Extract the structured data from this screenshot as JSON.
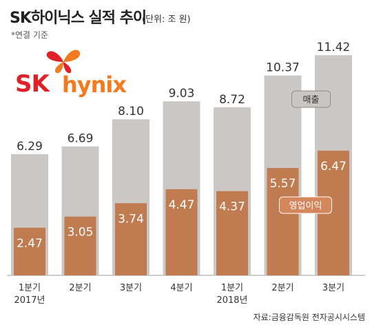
{
  "header": {
    "title": "SK하이닉스 실적 추이",
    "unit": "(단위: 조 원)",
    "note": "*연결 기준"
  },
  "logo": {
    "sk": "SK",
    "hynix": "hynix"
  },
  "source": "자료:금융감독원 전자공시시스템",
  "colors": {
    "revenue": "#cac7c4",
    "operating_profit": "#c07b50",
    "background": "#ffffff",
    "label_box": "#c8c5c2"
  },
  "chart_data": {
    "type": "bar",
    "categories": [
      "1분기",
      "2분기",
      "3분기",
      "4분기",
      "1분기",
      "2분기",
      "3분기"
    ],
    "year_labels": [
      "2017년",
      "",
      "",
      "",
      "2018년",
      "",
      ""
    ],
    "series": [
      {
        "name": "매출",
        "values": [
          6.29,
          6.69,
          8.1,
          9.03,
          8.72,
          10.37,
          11.42
        ],
        "labels": [
          "6.29",
          "6.69",
          "8.10",
          "9.03",
          "8.72",
          "10.37",
          "11.42"
        ]
      },
      {
        "name": "영업이익",
        "values": [
          2.47,
          3.05,
          3.74,
          4.47,
          4.37,
          5.57,
          6.47
        ],
        "labels": [
          "2.47",
          "3.05",
          "3.74",
          "4.47",
          "4.37",
          "5.57",
          "6.47"
        ]
      }
    ],
    "ylim": [
      0,
      12
    ]
  }
}
